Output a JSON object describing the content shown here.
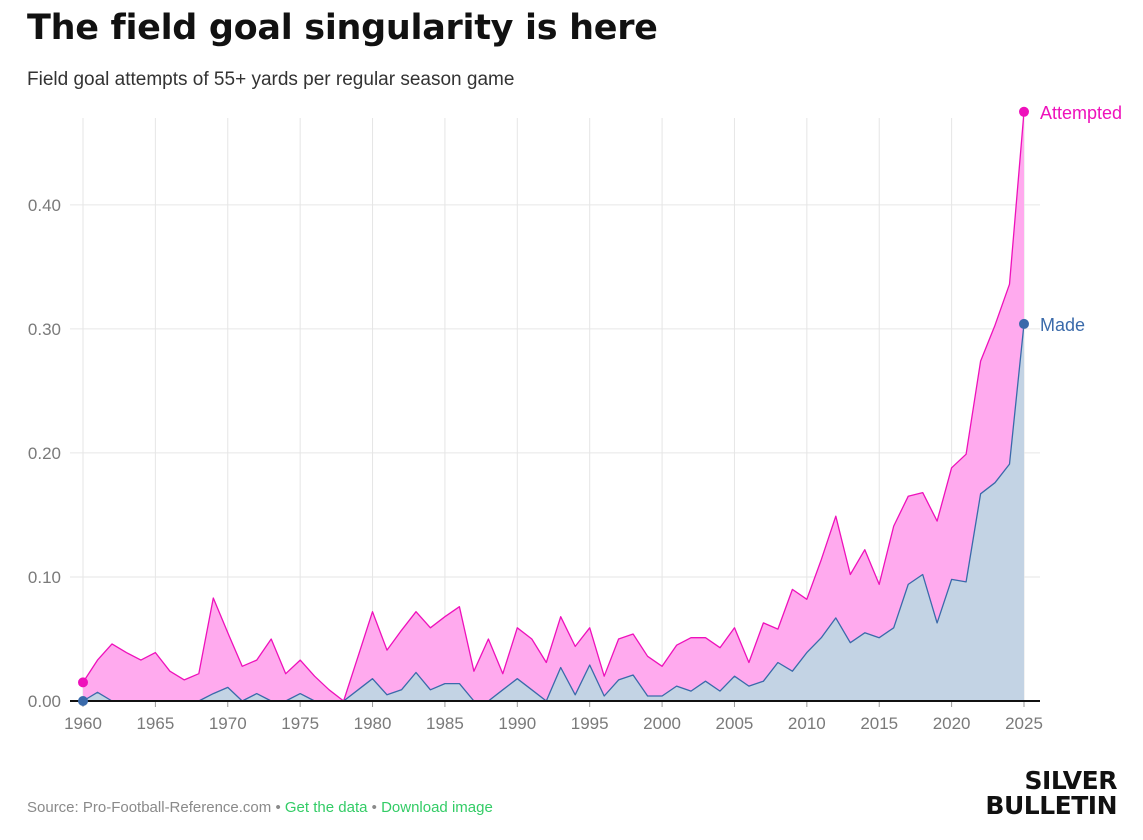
{
  "header": {
    "title": "The field goal singularity is here",
    "subtitle": "Field goal attempts of 55+ yards per regular season game"
  },
  "footer": {
    "source": "Source: Pro-Football-Reference.com",
    "separator": "•",
    "get_data": "Get the data",
    "download": "Download image",
    "link_color": "#33cc66"
  },
  "logo": {
    "line1": "SILVER",
    "line2": "BULLETIN"
  },
  "chart_data": {
    "type": "area",
    "title": "The field goal singularity is here",
    "subtitle": "Field goal attempts of 55+ yards per regular season game",
    "xlabel": "",
    "ylabel": "",
    "xlim": [
      1960,
      2025
    ],
    "ylim": [
      0,
      0.47
    ],
    "x_ticks": [
      1960,
      1965,
      1970,
      1975,
      1980,
      1985,
      1990,
      1995,
      2000,
      2005,
      2010,
      2015,
      2020,
      2025
    ],
    "y_ticks": [
      0,
      0.1,
      0.2,
      0.3,
      0.4
    ],
    "y_tick_labels": [
      "0.00",
      "0.10",
      "0.20",
      "0.30",
      "0.40"
    ],
    "grid": true,
    "x": [
      1960,
      1961,
      1962,
      1963,
      1964,
      1965,
      1966,
      1967,
      1968,
      1969,
      1970,
      1971,
      1972,
      1973,
      1974,
      1975,
      1976,
      1977,
      1978,
      1979,
      1980,
      1981,
      1982,
      1983,
      1984,
      1985,
      1986,
      1987,
      1988,
      1989,
      1990,
      1991,
      1992,
      1993,
      1994,
      1995,
      1996,
      1997,
      1998,
      1999,
      2000,
      2001,
      2002,
      2003,
      2004,
      2005,
      2006,
      2007,
      2008,
      2009,
      2010,
      2011,
      2012,
      2013,
      2014,
      2015,
      2016,
      2017,
      2018,
      2019,
      2020,
      2021,
      2022,
      2023,
      2024,
      2025
    ],
    "series": [
      {
        "name": "Attempted",
        "color": "#ee11bb",
        "fill": "#ffaaee",
        "values": [
          0.015,
          0.033,
          0.046,
          0.039,
          0.033,
          0.039,
          0.024,
          0.017,
          0.022,
          0.083,
          0.055,
          0.028,
          0.033,
          0.05,
          0.022,
          0.033,
          0.02,
          0.009,
          0.0,
          0.036,
          0.072,
          0.041,
          0.057,
          0.072,
          0.059,
          0.068,
          0.076,
          0.024,
          0.05,
          0.022,
          0.059,
          0.05,
          0.031,
          0.068,
          0.044,
          0.059,
          0.02,
          0.05,
          0.054,
          0.036,
          0.028,
          0.045,
          0.051,
          0.051,
          0.043,
          0.059,
          0.031,
          0.063,
          0.058,
          0.09,
          0.082,
          0.114,
          0.149,
          0.102,
          0.122,
          0.094,
          0.141,
          0.165,
          0.168,
          0.145,
          0.188,
          0.199,
          0.274,
          0.303,
          0.336,
          0.475
        ]
      },
      {
        "name": "Made",
        "color": "#3a6aaa",
        "fill": "#c3d3e4",
        "values": [
          0.0,
          0.007,
          0.0,
          0.0,
          0.0,
          0.0,
          0.0,
          0.0,
          0.0,
          0.006,
          0.011,
          0.0,
          0.006,
          0.0,
          0.0,
          0.006,
          0.0,
          0.0,
          0.0,
          0.009,
          0.018,
          0.005,
          0.009,
          0.023,
          0.009,
          0.014,
          0.014,
          0.0,
          0.0,
          0.009,
          0.018,
          0.009,
          0.0,
          0.027,
          0.005,
          0.029,
          0.004,
          0.017,
          0.021,
          0.004,
          0.004,
          0.012,
          0.008,
          0.016,
          0.008,
          0.02,
          0.012,
          0.016,
          0.031,
          0.024,
          0.039,
          0.051,
          0.067,
          0.047,
          0.055,
          0.051,
          0.059,
          0.094,
          0.102,
          0.063,
          0.098,
          0.096,
          0.167,
          0.176,
          0.191,
          0.304
        ]
      }
    ],
    "axis_color": "#111111",
    "grid_color": "#e6e6e6"
  }
}
